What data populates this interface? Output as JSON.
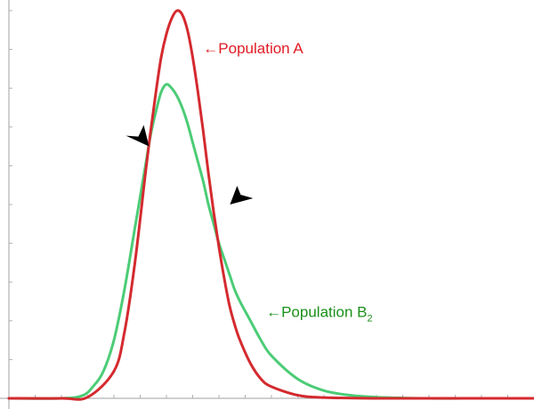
{
  "chart_data": {
    "type": "line",
    "x_range": [
      0,
      100
    ],
    "y_range": [
      0,
      1
    ],
    "grid": false,
    "series": [
      {
        "name": "Population A",
        "color": "#d42a2f",
        "x": [
          0,
          10,
          15,
          20,
          22,
          24,
          26,
          27,
          28,
          29,
          30,
          31,
          32,
          33,
          34,
          35,
          36,
          37,
          38,
          39,
          40,
          41,
          42,
          43,
          44,
          46,
          48,
          50,
          55,
          60,
          70,
          80,
          90,
          100
        ],
        "y": [
          0,
          0,
          0.003,
          0.07,
          0.17,
          0.35,
          0.58,
          0.69,
          0.79,
          0.88,
          0.94,
          0.98,
          1.0,
          0.99,
          0.95,
          0.88,
          0.79,
          0.69,
          0.58,
          0.48,
          0.39,
          0.31,
          0.24,
          0.19,
          0.15,
          0.09,
          0.05,
          0.03,
          0.008,
          0.002,
          0,
          0,
          0,
          0
        ]
      },
      {
        "name": "Population B",
        "name_subscript": "2",
        "color": "#4ccc76",
        "x": [
          0,
          10,
          14,
          16,
          18,
          20,
          22,
          24,
          26,
          27,
          28,
          29,
          30,
          31,
          32,
          33,
          34,
          35,
          36,
          37,
          38,
          39,
          40,
          41,
          42,
          43,
          44,
          46,
          48,
          50,
          55,
          60,
          65,
          70,
          80,
          90,
          100
        ],
        "y": [
          0,
          0,
          0.007,
          0.03,
          0.07,
          0.15,
          0.28,
          0.44,
          0.6,
          0.68,
          0.74,
          0.79,
          0.81,
          0.8,
          0.78,
          0.75,
          0.71,
          0.66,
          0.61,
          0.56,
          0.5,
          0.45,
          0.4,
          0.36,
          0.32,
          0.28,
          0.25,
          0.2,
          0.15,
          0.11,
          0.05,
          0.02,
          0.008,
          0.003,
          0,
          0,
          0
        ]
      }
    ],
    "annotations": [
      {
        "text": "←Population A",
        "color": "#e01b24",
        "x": 37,
        "y": 0.89
      },
      {
        "text": "←Population B",
        "subscript": "2",
        "color": "#1a8f1a",
        "x": 49,
        "y": 0.21
      }
    ],
    "markers": [
      {
        "shape": "arrowhead",
        "color": "#000000",
        "x": 26.7,
        "y": 0.65,
        "direction": "down-right"
      },
      {
        "shape": "arrowhead",
        "color": "#000000",
        "x": 42.1,
        "y": 0.5,
        "direction": "left"
      }
    ]
  }
}
